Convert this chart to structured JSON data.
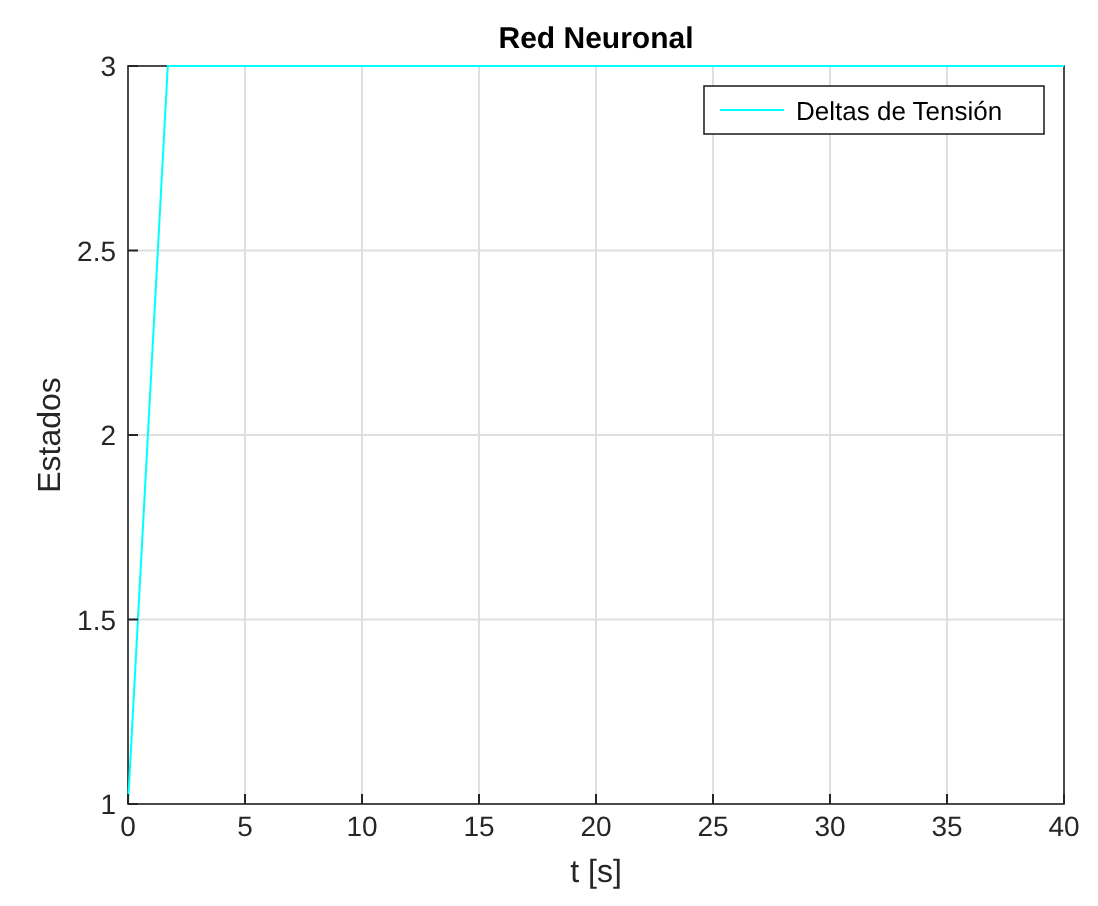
{
  "chart_data": {
    "type": "line",
    "title": "Red Neuronal",
    "xlabel": "t [s]",
    "ylabel": "Estados",
    "series": [
      {
        "name": "Deltas de Tensión",
        "color": "#00ffff",
        "x": [
          0,
          1.7,
          40
        ],
        "values": [
          1,
          3,
          3
        ]
      }
    ],
    "xlim": [
      0,
      40
    ],
    "xticks": [
      0,
      5,
      10,
      15,
      20,
      25,
      30,
      35,
      40
    ],
    "ylim": [
      1,
      3
    ],
    "yticks": [
      1,
      1.5,
      2,
      2.5,
      3
    ],
    "grid": true,
    "legend": "top right",
    "line_style": "solid",
    "marker": "none"
  }
}
